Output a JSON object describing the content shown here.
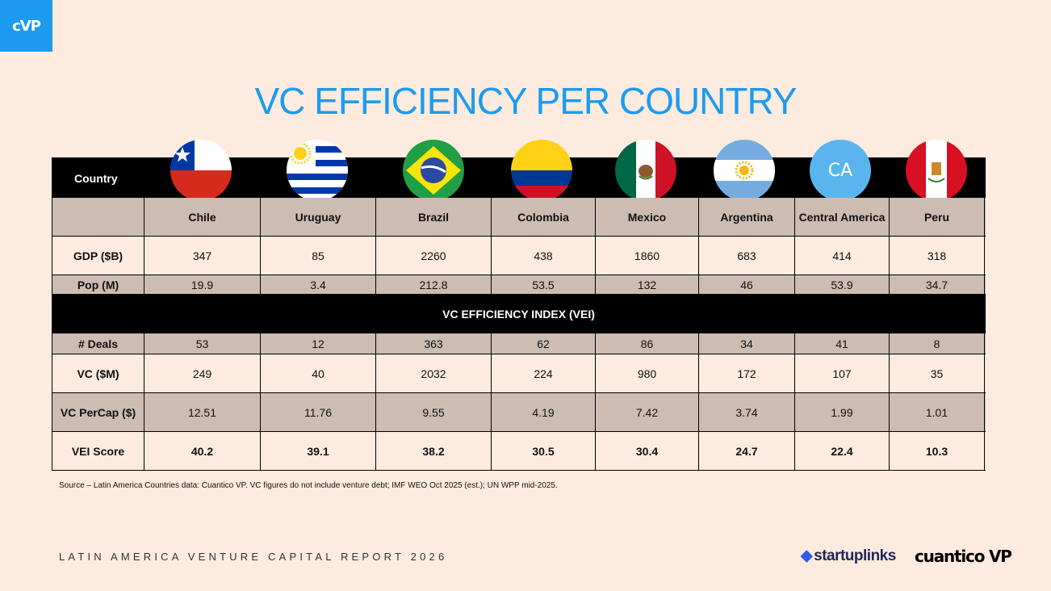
{
  "logo": "cVP",
  "title": "VC EFFICIENCY PER COUNTRY",
  "table": {
    "country_header": "Country",
    "countries": [
      "Chile",
      "Uruguay",
      "Brazil",
      "Colombia",
      "Mexico",
      "Argentina",
      "Central America",
      "Peru"
    ],
    "central_america_badge": "CA",
    "gdp": {
      "label": "GDP ($B)",
      "values": [
        "347",
        "85",
        "2260",
        "438",
        "1860",
        "683",
        "414",
        "318"
      ]
    },
    "pop": {
      "label": "Pop (M)",
      "values": [
        "19.9",
        "3.4",
        "212.8",
        "53.5",
        "132",
        "46",
        "53.9",
        "34.7"
      ]
    },
    "section_title": "VC EFFICIENCY INDEX (VEI)",
    "deals": {
      "label": "# Deals",
      "values": [
        "53",
        "12",
        "363",
        "62",
        "86",
        "34",
        "41",
        "8"
      ]
    },
    "vc": {
      "label": "VC ($M)",
      "values": [
        "249",
        "40",
        "2032",
        "224",
        "980",
        "172",
        "107",
        "35"
      ]
    },
    "vc_percap": {
      "label": "VC PerCap ($)",
      "values": [
        "12.51",
        "11.76",
        "9.55",
        "4.19",
        "7.42",
        "3.74",
        "1.99",
        "1.01"
      ]
    },
    "vei": {
      "label": "VEI Score",
      "values": [
        "40.2",
        "39.1",
        "38.2",
        "30.5",
        "30.4",
        "24.7",
        "22.4",
        "10.3"
      ]
    }
  },
  "source": "Source – Latin America Countries data: Cuantico VP. VC figures do not include venture debt; IMF WEO Oct 2025 (est.); UN WPP mid-2025.",
  "footer": "LATIN AMERICA VENTURE CAPITAL REPORT 2026",
  "brands": {
    "startuplinks": "startuplinks",
    "cuantico": "cuantico VP"
  },
  "colors": {
    "accent": "#1c9bf0",
    "background": "#fcebde",
    "tan_row": "#ccbcb2"
  }
}
